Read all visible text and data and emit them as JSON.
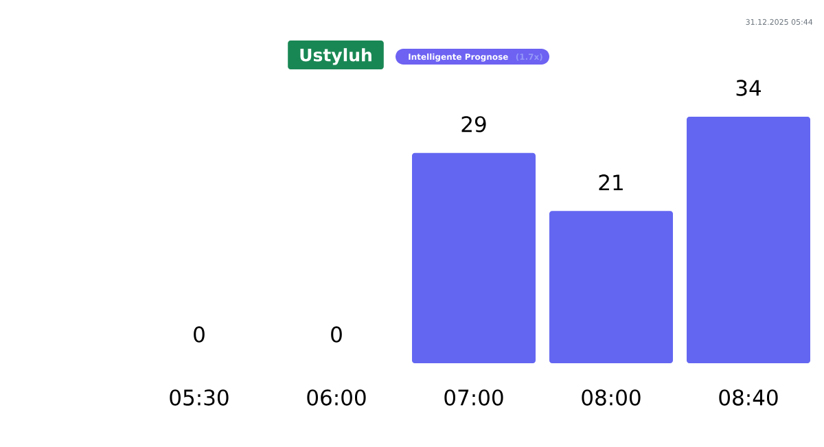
{
  "chart_data": {
    "type": "bar",
    "title": "Ustyluh",
    "subtitle": "Intelligente Prognose",
    "categories": [
      "05:30",
      "06:00",
      "07:00",
      "08:00",
      "08:40"
    ],
    "values": [
      0,
      0,
      29,
      21,
      34
    ],
    "color": "#6366f1",
    "ylim": [
      0,
      34
    ],
    "data_labels": true,
    "tick_labels": "x",
    "annotations": [
      "(1.7x)",
      "31.12.2025 05:44"
    ]
  }
}
